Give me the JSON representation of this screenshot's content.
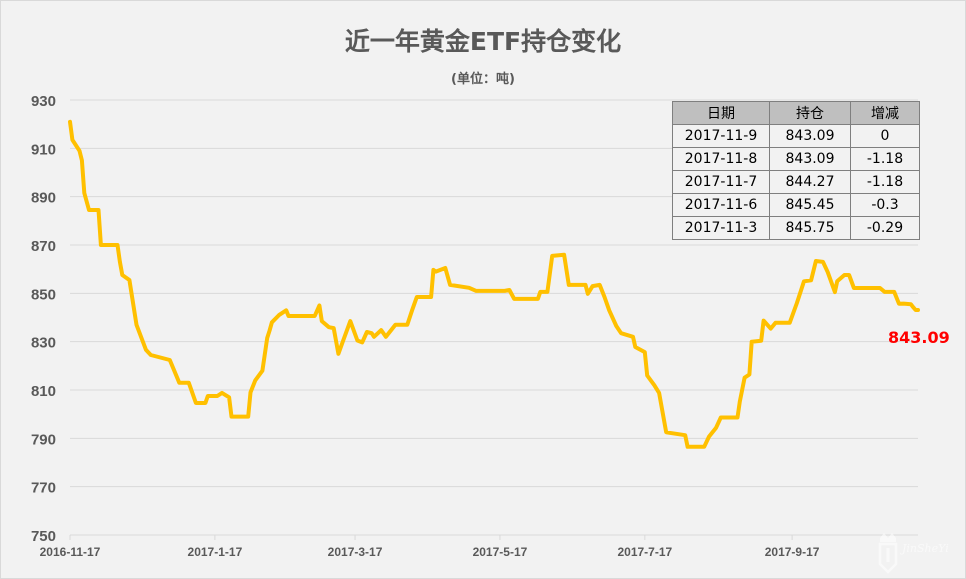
{
  "chart_data": {
    "type": "line",
    "title": "近一年黄金ETF持仓变化",
    "subtitle": "(单位：吨)",
    "xlabel": "",
    "ylabel": "",
    "ylim": [
      750,
      930
    ],
    "yticks": [
      "750",
      "770",
      "790",
      "810",
      "830",
      "850",
      "870",
      "890",
      "910",
      "930"
    ],
    "xlim": [
      "2016-11-17",
      "2017-11-9"
    ],
    "xticks": [
      "2016-11-17",
      "2017-1-17",
      "2017-3-17",
      "2017-5-17",
      "2017-7-17",
      "2017-9-17"
    ],
    "grid": true,
    "line_color": "#FFC000",
    "last_label": "843.09",
    "last_label_color": "#FF0000",
    "series": [
      {
        "x": [
          "2016-11-17",
          "2016-11-18",
          "2016-11-21",
          "2016-11-22",
          "2016-11-23",
          "2016-11-25",
          "2016-11-29",
          "2016-11-30",
          "2016-12-07",
          "2016-12-08",
          "2016-12-09",
          "2016-12-12",
          "2016-12-15",
          "2016-12-19",
          "2016-12-21",
          "2016-12-29",
          "2017-01-02",
          "2017-01-06",
          "2017-01-09",
          "2017-01-13",
          "2017-01-14",
          "2017-01-18",
          "2017-01-20",
          "2017-01-23",
          "2017-01-24",
          "2017-01-31",
          "2017-02-01",
          "2017-02-03",
          "2017-02-06",
          "2017-02-08",
          "2017-02-09",
          "2017-02-10",
          "2017-02-13",
          "2017-02-16",
          "2017-02-17",
          "2017-02-28",
          "2017-03-02",
          "2017-03-03",
          "2017-03-06",
          "2017-03-08",
          "2017-03-10",
          "2017-03-12",
          "2017-03-15",
          "2017-03-18",
          "2017-03-20",
          "2017-03-22",
          "2017-03-24",
          "2017-03-25",
          "2017-03-28",
          "2017-03-30",
          "2017-04-03",
          "2017-04-08",
          "2017-04-10",
          "2017-04-12",
          "2017-04-18",
          "2017-04-19",
          "2017-04-20",
          "2017-04-24",
          "2017-04-26",
          "2017-05-04",
          "2017-05-07",
          "2017-05-19",
          "2017-05-21",
          "2017-05-23",
          "2017-06-02",
          "2017-06-03",
          "2017-06-06",
          "2017-06-08",
          "2017-06-13",
          "2017-06-15",
          "2017-06-22",
          "2017-06-23",
          "2017-06-25",
          "2017-06-28",
          "2017-06-30",
          "2017-07-02",
          "2017-07-05",
          "2017-07-07",
          "2017-07-12",
          "2017-07-13",
          "2017-07-17",
          "2017-07-18",
          "2017-07-21",
          "2017-07-23",
          "2017-07-26",
          "2017-08-03",
          "2017-08-04",
          "2017-08-11",
          "2017-08-13",
          "2017-08-16",
          "2017-08-18",
          "2017-08-25",
          "2017-08-26",
          "2017-08-28",
          "2017-08-30",
          "2017-08-31",
          "2017-09-04",
          "2017-09-05",
          "2017-09-08",
          "2017-09-10",
          "2017-09-16",
          "2017-09-19",
          "2017-09-22",
          "2017-09-25",
          "2017-09-27",
          "2017-09-30",
          "2017-10-02",
          "2017-10-05",
          "2017-10-06",
          "2017-10-09",
          "2017-10-11",
          "2017-10-13",
          "2017-10-24",
          "2017-10-26",
          "2017-10-30",
          "2017-11-01",
          "2017-11-03",
          "2017-11-06",
          "2017-11-07",
          "2017-11-08",
          "2017-11-09"
        ],
        "y": [
          921,
          913.5,
          909,
          905,
          891.5,
          884.5,
          884.5,
          870,
          870,
          863,
          857.6,
          855.5,
          837,
          826.6,
          824.5,
          822.4,
          813,
          813,
          804.6,
          804.6,
          807.5,
          807.5,
          808.8,
          807,
          799,
          799,
          809,
          814,
          818,
          831.5,
          834.5,
          838,
          841,
          843,
          840.6,
          840.6,
          845,
          838.5,
          836,
          835.6,
          825,
          830.5,
          838.5,
          830.5,
          829.7,
          834,
          833.5,
          832,
          834.8,
          832,
          837,
          837,
          843,
          848.5,
          848.5,
          859.7,
          859,
          860.5,
          853.5,
          852.3,
          851,
          851,
          851.4,
          847.7,
          847.7,
          850.6,
          850.6,
          865.5,
          866,
          853.5,
          853.5,
          849.8,
          853,
          853.5,
          848.5,
          843,
          836.5,
          833.5,
          832,
          827.8,
          825.7,
          816,
          812,
          808.8,
          792.5,
          791.3,
          786.5,
          786.5,
          790.7,
          794.4,
          798.6,
          798.6,
          805.2,
          815.1,
          816.4,
          830,
          830.4,
          838.7,
          835.4,
          837.8,
          837.8,
          846,
          855,
          855.4,
          863.4,
          863,
          858.8,
          850.5,
          855,
          857.6,
          857.6,
          852.2,
          852.2,
          850.6,
          850.6,
          845.7,
          845.75,
          845.45,
          844.27,
          843.09,
          843.09
        ]
      }
    ]
  },
  "table": {
    "headers": [
      "日期",
      "持仓",
      "增减"
    ],
    "rows": [
      [
        "2017-11-9",
        "843.09",
        "0"
      ],
      [
        "2017-11-8",
        "843.09",
        "-1.18"
      ],
      [
        "2017-11-7",
        "844.27",
        "-1.18"
      ],
      [
        "2017-11-6",
        "845.45",
        "-0.3"
      ],
      [
        "2017-11-3",
        "845.75",
        "-0.29"
      ]
    ]
  },
  "logo": {
    "text": "JinSheYi",
    "subtext": "金舍予"
  }
}
